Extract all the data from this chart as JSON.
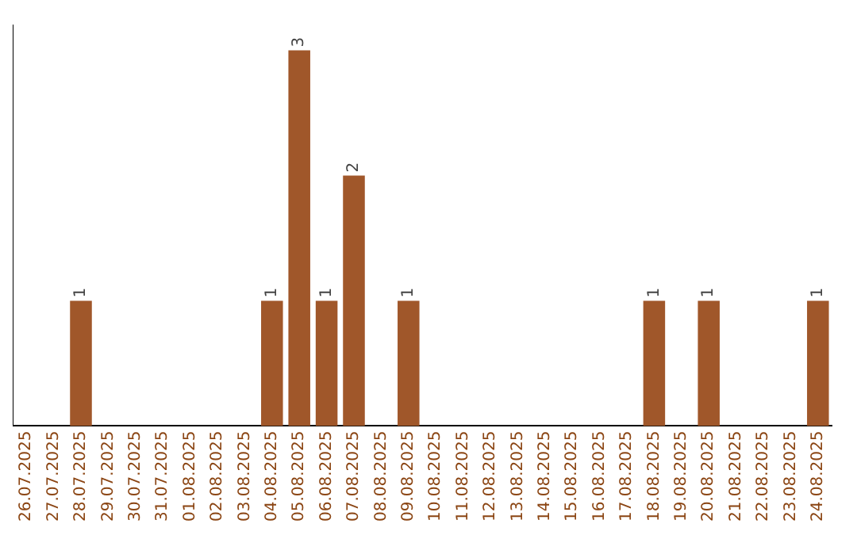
{
  "chart_data": {
    "type": "bar",
    "categories": [
      "26.07.2025",
      "27.07.2025",
      "28.07.2025",
      "29.07.2025",
      "30.07.2025",
      "31.07.2025",
      "01.08.2025",
      "02.08.2025",
      "03.08.2025",
      "04.08.2025",
      "05.08.2025",
      "06.08.2025",
      "07.08.2025",
      "08.08.2025",
      "09.08.2025",
      "10.08.2025",
      "11.08.2025",
      "12.08.2025",
      "13.08.2025",
      "14.08.2025",
      "15.08.2025",
      "16.08.2025",
      "17.08.2025",
      "18.08.2025",
      "19.08.2025",
      "20.08.2025",
      "21.08.2025",
      "22.08.2025",
      "23.08.2025",
      "24.08.2025"
    ],
    "values": [
      0,
      0,
      1,
      0,
      0,
      0,
      0,
      0,
      0,
      1,
      3,
      1,
      2,
      0,
      1,
      0,
      0,
      0,
      0,
      0,
      0,
      0,
      0,
      1,
      0,
      1,
      0,
      0,
      0,
      1
    ],
    "color": "#a0572a",
    "ylim": [
      0,
      3.2
    ],
    "tick_labels": "x",
    "value_labels": [
      null,
      null,
      "1",
      null,
      null,
      null,
      null,
      null,
      null,
      "1",
      "3",
      "1",
      "2",
      null,
      "1",
      null,
      null,
      null,
      null,
      null,
      null,
      null,
      null,
      "1",
      null,
      "1",
      null,
      null,
      null,
      "1"
    ],
    "grid": false,
    "legend": false
  }
}
